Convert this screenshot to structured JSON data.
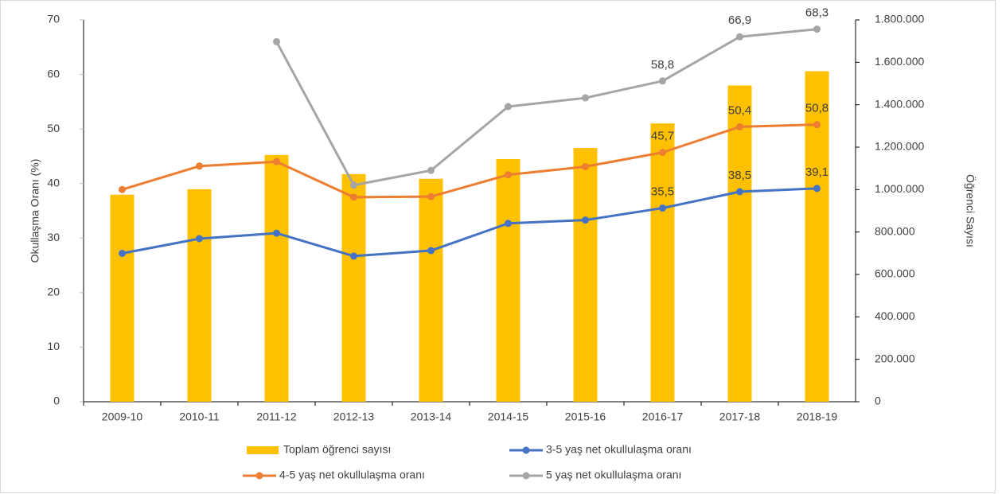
{
  "chart_data": {
    "type": "bar_line",
    "y_label": "Okullaşma Oranı (%)",
    "y2_label": "Öğrenci Sayısı",
    "categories": [
      "2009-10",
      "2010-11",
      "2011-12",
      "2012-13",
      "2013-14",
      "2014-15",
      "2015-16",
      "2016-17",
      "2017-18",
      "2018-19"
    ],
    "ylim": [
      0,
      70
    ],
    "yticks": [
      0,
      10,
      20,
      30,
      40,
      50,
      60,
      70
    ],
    "y2lim": [
      0,
      1800000
    ],
    "y2ticks": [
      0,
      {
        "value": 200000,
        "label": "200.000"
      },
      {
        "value": 400000,
        "label": "400.000"
      },
      {
        "value": 600000,
        "label": "600.000"
      },
      {
        "value": 800000,
        "label": "800.000"
      },
      {
        "value": 1000000,
        "label": "1.000.000"
      },
      {
        "value": 1200000,
        "label": "1.200.000"
      },
      {
        "value": 1400000,
        "label": "1.400.000"
      },
      {
        "value": 1600000,
        "label": "1.600.000"
      },
      {
        "value": 1800000,
        "label": "1.800.000"
      }
    ],
    "grid": false,
    "legend": "bottom",
    "series": [
      {
        "name": "Toplam öğrenci sayısı",
        "type": "bar",
        "axis": "y2",
        "color": "#ffc000",
        "values": [
          976000,
          1002000,
          1163000,
          1073000,
          1051000,
          1144000,
          1196000,
          1312000,
          1491000,
          1558000
        ]
      },
      {
        "name": "3-5 yaş net okullulaşma oranı",
        "type": "line",
        "color": "#4472c4",
        "values": [
          27.2,
          29.9,
          30.9,
          26.7,
          27.7,
          32.7,
          33.3,
          35.5,
          38.5,
          39.1
        ],
        "value_labels": [
          null,
          null,
          null,
          null,
          null,
          null,
          null,
          "35,5",
          "38,5",
          "39,1"
        ]
      },
      {
        "name": "4-5 yaş net okullulaşma oranı",
        "type": "line",
        "color": "#ed7d31",
        "values": [
          38.9,
          43.2,
          44.0,
          37.5,
          37.6,
          41.6,
          43.1,
          45.7,
          50.4,
          50.8
        ],
        "value_labels": [
          null,
          null,
          null,
          null,
          null,
          null,
          null,
          "45,7",
          "50,4",
          "50,8"
        ]
      },
      {
        "name": "5 yaş net okullulaşma oranı",
        "type": "line",
        "color": "#a5a5a5",
        "values": [
          null,
          null,
          66.0,
          39.7,
          42.4,
          54.1,
          55.7,
          58.8,
          66.9,
          68.3
        ],
        "value_labels": [
          null,
          null,
          null,
          null,
          null,
          null,
          null,
          "58,8",
          "66,9",
          "68,3"
        ]
      }
    ]
  }
}
